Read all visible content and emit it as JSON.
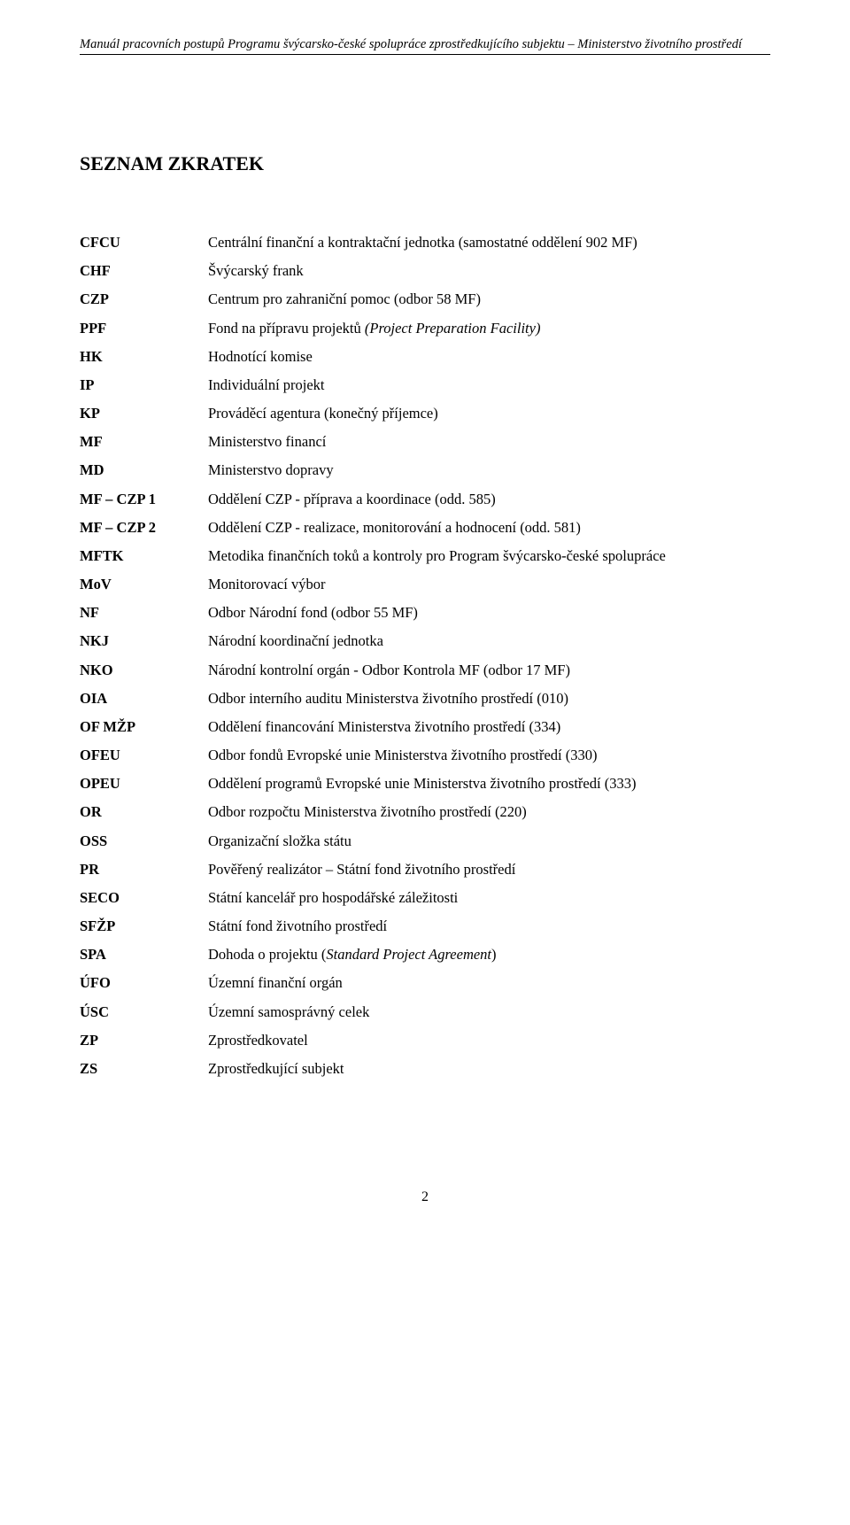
{
  "header": "Manuál pracovních postupů Programu švýcarsko-české spolupráce zprostředkujícího subjektu – Ministerstvo životního prostředí",
  "title": "SEZNAM ZKRATEK",
  "pageNumber": "2",
  "rows": [
    {
      "k": "CFCU",
      "v": "Centrální finanční a kontraktační jednotka (samostatné oddělení 902 MF)"
    },
    {
      "k": "CHF",
      "v": "Švýcarský frank"
    },
    {
      "k": "CZP",
      "v": "Centrum pro zahraniční pomoc (odbor 58 MF)"
    },
    {
      "k": "PPF",
      "v": "Fond na přípravu projektů <i>(Project Preparation Facility)</i>"
    },
    {
      "k": "HK",
      "v": "Hodnotící komise"
    },
    {
      "k": "IP",
      "v": "Individuální projekt"
    },
    {
      "k": "KP",
      "v": "Prováděcí agentura (konečný příjemce)"
    },
    {
      "k": "MF",
      "v": "Ministerstvo financí"
    },
    {
      "k": "MD",
      "v": "Ministerstvo dopravy"
    },
    {
      "k": "MF – CZP 1",
      "v": "Oddělení CZP - příprava a koordinace (odd. 585)"
    },
    {
      "k": "MF – CZP 2",
      "v": "Oddělení CZP - realizace, monitorování a hodnocení (odd. 581)"
    },
    {
      "k": "MFTK",
      "v": "Metodika finančních toků a kontroly pro Program švýcarsko-české spolupráce"
    },
    {
      "k": "MoV",
      "v": "Monitorovací výbor"
    },
    {
      "k": "NF",
      "v": "Odbor Národní fond (odbor 55 MF)"
    },
    {
      "k": "NKJ",
      "v": "Národní koordinační jednotka"
    },
    {
      "k": "NKO",
      "v": "Národní kontrolní orgán - Odbor Kontrola MF (odbor 17 MF)"
    },
    {
      "k": "OIA",
      "v": "Odbor interního auditu Ministerstva životního prostředí (010)"
    },
    {
      "k": "OF MŽP",
      "v": "Oddělení financování Ministerstva životního prostředí (334)"
    },
    {
      "k": "OFEU",
      "v": "Odbor fondů Evropské unie Ministerstva životního prostředí (330)"
    },
    {
      "k": "OPEU",
      "v": "Oddělení programů Evropské unie Ministerstva životního prostředí (333)"
    },
    {
      "k": "OR",
      "v": "Odbor rozpočtu Ministerstva životního prostředí (220)"
    },
    {
      "k": "OSS",
      "v": "Organizační složka státu"
    },
    {
      "k": "PR",
      "v": "Pověřený realizátor – Státní fond životního prostředí"
    },
    {
      "k": "SECO",
      "v": "Státní kancelář pro hospodářské záležitosti"
    },
    {
      "k": "SFŽP",
      "v": "Státní fond životního prostředí"
    },
    {
      "k": "SPA",
      "v": "Dohoda o projektu (<i>Standard Project Agreement</i>)"
    },
    {
      "k": "ÚFO",
      "v": "Územní finanční orgán"
    },
    {
      "k": "ÚSC",
      "v": "Územní samosprávný celek"
    },
    {
      "k": "ZP",
      "v": "Zprostředkovatel"
    },
    {
      "k": "ZS",
      "v": "Zprostředkující subjekt"
    }
  ]
}
